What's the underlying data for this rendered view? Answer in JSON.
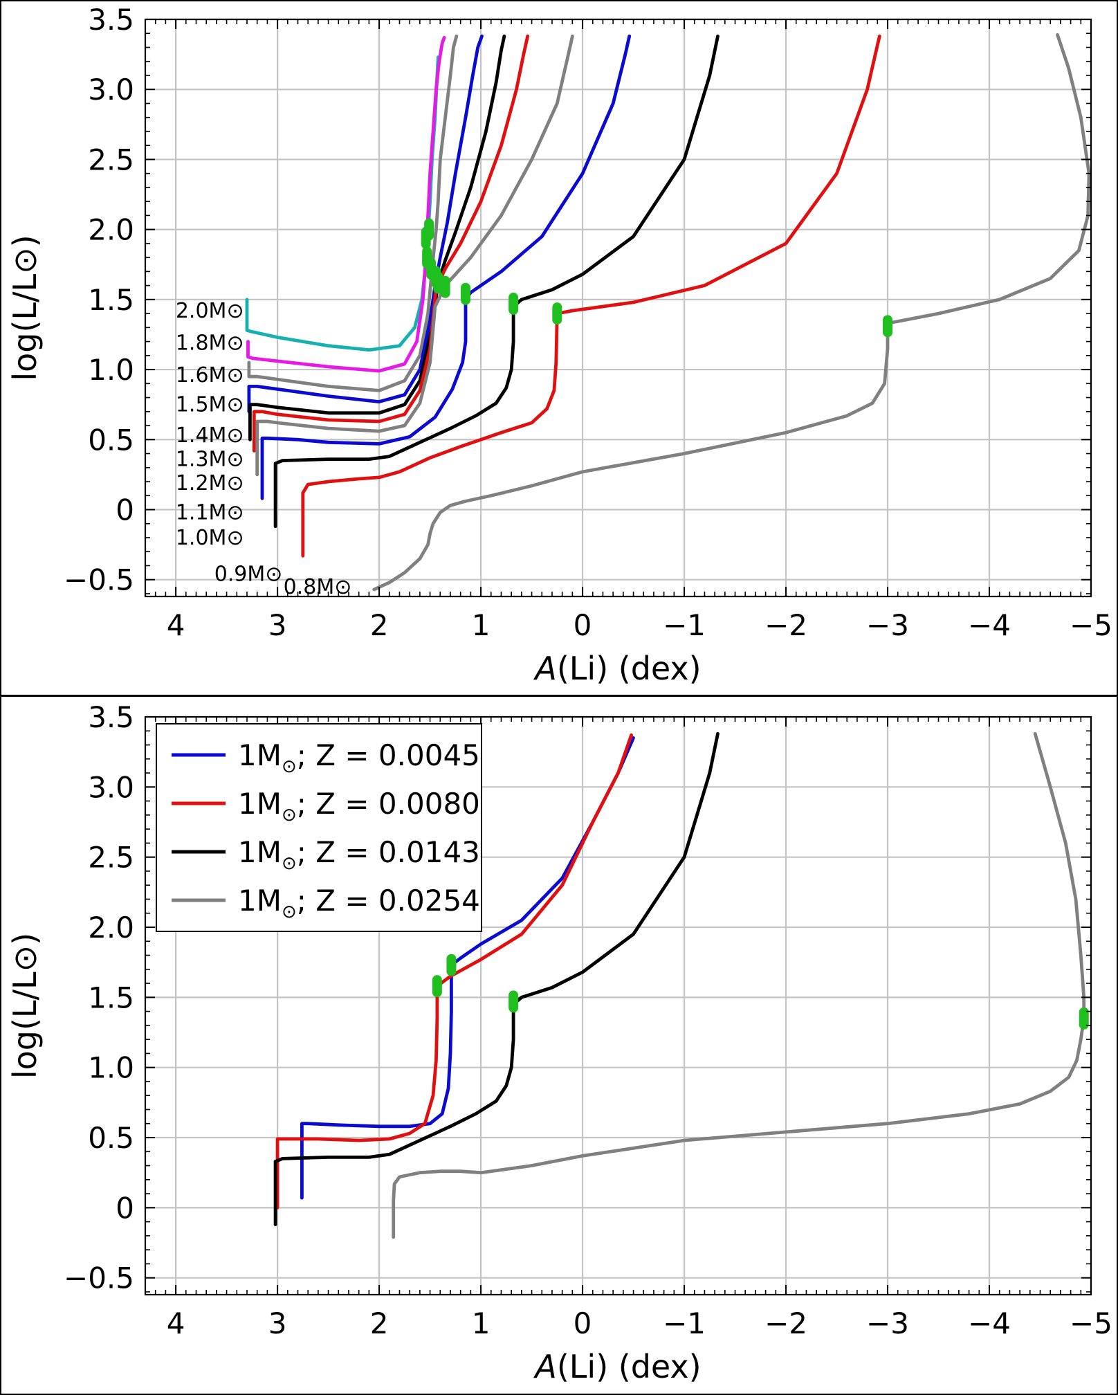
{
  "chart_data": [
    {
      "type": "line",
      "panel": "top",
      "xlabel_italic": "A",
      "xlabel_rest": "(Li) (dex)",
      "ylabel": "log(L/L⊙)",
      "xlim": [
        4.3,
        -5.0
      ],
      "ylim": [
        -0.62,
        3.5
      ],
      "xticks": [
        4,
        3,
        2,
        1,
        0,
        -1,
        -2,
        -3,
        -4,
        -5
      ],
      "xtick_labels": [
        "4",
        "3",
        "2",
        "1",
        "0",
        "−1",
        "−2",
        "−3",
        "−4",
        "−5"
      ],
      "yticks": [
        -0.5,
        0,
        0.5,
        1.0,
        1.5,
        2.0,
        2.5,
        3.0,
        3.5
      ],
      "ytick_labels": [
        "−0.5",
        "0",
        "0.5",
        "1.0",
        "1.5",
        "2.0",
        "2.5",
        "3.0",
        "3.5"
      ],
      "grid": true,
      "bump_color": "#1fbf1f",
      "series": [
        {
          "name": "2.0M⊙",
          "color": "#17b0b0",
          "label_pos": [
            3.33,
            1.42
          ],
          "bump": [
            1.51,
            2.0
          ],
          "x": [
            3.3,
            3.3,
            3.3,
            3.25,
            3.0,
            2.5,
            2.1,
            1.8,
            1.65,
            1.58,
            1.55,
            1.52,
            1.5,
            1.48,
            1.45,
            1.43,
            1.42
          ],
          "y": [
            1.5,
            1.35,
            1.28,
            1.27,
            1.23,
            1.17,
            1.14,
            1.17,
            1.3,
            1.5,
            1.7,
            1.95,
            2.2,
            2.5,
            2.8,
            3.1,
            3.23
          ]
        },
        {
          "name": "1.8M⊙",
          "color": "#e61ae6",
          "label_pos": [
            3.33,
            1.19
          ],
          "bump": [
            1.54,
            1.94
          ],
          "x": [
            3.29,
            3.29,
            3.29,
            3.24,
            3.0,
            2.5,
            2.0,
            1.75,
            1.63,
            1.57,
            1.54,
            1.52,
            1.5,
            1.47,
            1.44,
            1.41,
            1.38,
            1.36
          ],
          "y": [
            1.2,
            1.12,
            1.09,
            1.08,
            1.06,
            1.02,
            0.99,
            1.04,
            1.2,
            1.5,
            1.8,
            2.1,
            2.4,
            2.7,
            3.0,
            3.2,
            3.33,
            3.37
          ]
        },
        {
          "name": "1.6M⊙",
          "color": "#808080",
          "label_pos": [
            3.33,
            0.96
          ],
          "bump": [
            1.53,
            1.8
          ],
          "x": [
            3.28,
            3.28,
            3.28,
            3.2,
            3.0,
            2.5,
            2.0,
            1.75,
            1.6,
            1.52,
            1.48,
            1.44,
            1.42,
            1.4,
            1.35,
            1.3,
            1.27,
            1.24
          ],
          "y": [
            1.05,
            0.97,
            0.95,
            0.95,
            0.93,
            0.88,
            0.85,
            0.92,
            1.1,
            1.4,
            1.72,
            2.0,
            2.2,
            2.5,
            2.8,
            3.1,
            3.3,
            3.38
          ]
        },
        {
          "name": "1.5M⊙",
          "color": "#0a0ad0",
          "label_pos": [
            3.33,
            0.75
          ],
          "bump": [
            1.49,
            1.72
          ],
          "x": [
            3.28,
            3.28,
            3.28,
            3.2,
            3.0,
            2.5,
            2.0,
            1.75,
            1.6,
            1.5,
            1.45,
            1.4,
            1.33,
            1.25,
            1.15,
            1.08,
            1.03,
            0.99
          ],
          "y": [
            0.7,
            0.83,
            0.88,
            0.88,
            0.86,
            0.81,
            0.77,
            0.82,
            1.0,
            1.35,
            1.6,
            1.8,
            2.05,
            2.4,
            2.8,
            3.1,
            3.3,
            3.38
          ]
        },
        {
          "name": "1.4M⊙",
          "color": "#000000",
          "label_pos": [
            3.33,
            0.53
          ],
          "bump": [
            1.44,
            1.66
          ],
          "x": [
            3.27,
            3.27,
            3.27,
            3.2,
            3.0,
            2.5,
            2.0,
            1.75,
            1.6,
            1.48,
            1.42,
            1.35,
            1.25,
            1.1,
            0.95,
            0.85,
            0.8,
            0.77
          ],
          "y": [
            0.5,
            0.7,
            0.75,
            0.75,
            0.73,
            0.69,
            0.69,
            0.75,
            0.92,
            1.3,
            1.62,
            1.78,
            1.98,
            2.3,
            2.7,
            3.05,
            3.28,
            3.38
          ]
        },
        {
          "name": "1.3M⊙",
          "color": "#e01010",
          "label_pos": [
            3.33,
            0.36
          ],
          "bump": [
            1.42,
            1.62
          ],
          "x": [
            3.23,
            3.23,
            3.23,
            3.15,
            3.0,
            2.5,
            2.0,
            1.75,
            1.6,
            1.5,
            1.44,
            1.35,
            1.2,
            1.0,
            0.8,
            0.65,
            0.58,
            0.54
          ],
          "y": [
            0.42,
            0.62,
            0.7,
            0.7,
            0.68,
            0.64,
            0.63,
            0.68,
            0.85,
            1.15,
            1.58,
            1.72,
            1.9,
            2.2,
            2.6,
            3.0,
            3.25,
            3.38
          ]
        },
        {
          "name": "1.2M⊙",
          "color": "#808080",
          "label_pos": [
            3.33,
            0.19
          ],
          "bump": [
            1.35,
            1.59
          ],
          "x": [
            3.2,
            3.2,
            3.2,
            3.1,
            3.0,
            2.5,
            2.0,
            1.75,
            1.6,
            1.5,
            1.45,
            1.35,
            1.1,
            0.8,
            0.5,
            0.25,
            0.14,
            0.1
          ],
          "y": [
            0.25,
            0.55,
            0.63,
            0.63,
            0.62,
            0.58,
            0.56,
            0.6,
            0.76,
            1.05,
            1.45,
            1.6,
            1.8,
            2.1,
            2.5,
            2.9,
            3.25,
            3.38
          ]
        },
        {
          "name": "1.1M⊙",
          "color": "#0a0ad0",
          "label_pos": [
            3.33,
            -0.02
          ],
          "bump": [
            1.15,
            1.54
          ],
          "x": [
            3.15,
            3.15,
            3.15,
            3.1,
            2.8,
            2.5,
            2.0,
            1.7,
            1.45,
            1.28,
            1.18,
            1.15,
            1.15,
            1.1,
            0.8,
            0.4,
            0.0,
            -0.3,
            -0.42,
            -0.46
          ],
          "y": [
            0.08,
            0.45,
            0.51,
            0.51,
            0.5,
            0.48,
            0.47,
            0.52,
            0.66,
            0.86,
            1.05,
            1.2,
            1.5,
            1.55,
            1.7,
            1.95,
            2.4,
            2.9,
            3.25,
            3.38
          ]
        },
        {
          "name": "1.0M⊙",
          "color": "#000000",
          "label_pos": [
            3.33,
            -0.2
          ],
          "bump": [
            0.68,
            1.47
          ],
          "x": [
            3.02,
            3.02,
            3.02,
            2.95,
            2.5,
            2.1,
            1.9,
            1.6,
            1.3,
            1.05,
            0.85,
            0.75,
            0.7,
            0.68,
            0.68,
            0.6,
            0.3,
            0.0,
            -0.5,
            -1.0,
            -1.25,
            -1.33
          ],
          "y": [
            -0.12,
            0.15,
            0.33,
            0.35,
            0.36,
            0.36,
            0.38,
            0.48,
            0.58,
            0.67,
            0.76,
            0.87,
            1.0,
            1.2,
            1.45,
            1.5,
            1.57,
            1.68,
            1.95,
            2.5,
            3.1,
            3.38
          ]
        },
        {
          "name": "0.9M⊙",
          "color": "#e01010",
          "label_pos": [
            2.95,
            -0.46
          ],
          "bump": [
            0.25,
            1.4
          ],
          "x": [
            2.75,
            2.75,
            2.75,
            2.7,
            2.5,
            2.2,
            2.0,
            1.8,
            1.5,
            1.2,
            0.8,
            0.5,
            0.35,
            0.28,
            0.26,
            0.25,
            0.1,
            -0.5,
            -1.2,
            -2.0,
            -2.5,
            -2.8,
            -2.92
          ],
          "y": [
            -0.33,
            0.0,
            0.12,
            0.18,
            0.2,
            0.22,
            0.23,
            0.27,
            0.37,
            0.45,
            0.55,
            0.62,
            0.72,
            0.85,
            1.05,
            1.4,
            1.42,
            1.48,
            1.6,
            1.9,
            2.4,
            3.0,
            3.38
          ]
        },
        {
          "name": "0.8M⊙",
          "color": "#808080",
          "label_pos": [
            2.27,
            -0.55
          ],
          "bump": [
            -3.0,
            1.31
          ],
          "x": [
            2.05,
            1.9,
            1.75,
            1.6,
            1.52,
            1.5,
            1.47,
            1.4,
            1.3,
            1.15,
            0.9,
            0.5,
            0.0,
            -1.0,
            -2.0,
            -2.6,
            -2.85,
            -2.97,
            -3.0,
            -3.0,
            -3.5,
            -4.1,
            -4.6,
            -4.88,
            -4.97,
            -4.98,
            -4.9,
            -4.78,
            -4.67
          ],
          "y": [
            -0.57,
            -0.52,
            -0.45,
            -0.35,
            -0.25,
            -0.17,
            -0.1,
            -0.02,
            0.03,
            0.06,
            0.1,
            0.17,
            0.27,
            0.4,
            0.55,
            0.67,
            0.76,
            0.9,
            1.15,
            1.33,
            1.4,
            1.5,
            1.65,
            1.85,
            2.1,
            2.4,
            2.8,
            3.15,
            3.39
          ]
        }
      ]
    },
    {
      "type": "line",
      "panel": "bottom",
      "xlabel_italic": "A",
      "xlabel_rest": "(Li) (dex)",
      "ylabel": "log(L/L⊙)",
      "xlim": [
        4.3,
        -5.0
      ],
      "ylim": [
        -0.62,
        3.5
      ],
      "xticks": [
        4,
        3,
        2,
        1,
        0,
        -1,
        -2,
        -3,
        -4,
        -5
      ],
      "xtick_labels": [
        "4",
        "3",
        "2",
        "1",
        "0",
        "−1",
        "−2",
        "−3",
        "−4",
        "−5"
      ],
      "yticks": [
        -0.5,
        0,
        0.5,
        1.0,
        1.5,
        2.0,
        2.5,
        3.0,
        3.5
      ],
      "ytick_labels": [
        "−0.5",
        "0",
        "0.5",
        "1.0",
        "1.5",
        "2.0",
        "2.5",
        "3.0",
        "3.5"
      ],
      "grid": true,
      "legend_position": "top-left",
      "bump_color": "#1fbf1f",
      "series": [
        {
          "name": "1M⊙; Z = 0.0045",
          "legend_mass": "1M",
          "legend_rest": "; Z = 0.0045",
          "color": "#0a0ad0",
          "bump": [
            1.29,
            1.73
          ],
          "x": [
            2.76,
            2.76,
            2.76,
            2.7,
            2.4,
            2.0,
            1.7,
            1.5,
            1.38,
            1.32,
            1.3,
            1.29,
            1.29,
            1.2,
            1.0,
            0.6,
            0.2,
            -0.1,
            -0.35,
            -0.5
          ],
          "y": [
            0.07,
            0.45,
            0.6,
            0.6,
            0.59,
            0.58,
            0.58,
            0.6,
            0.67,
            0.85,
            1.1,
            1.4,
            1.73,
            1.78,
            1.88,
            2.05,
            2.35,
            2.75,
            3.1,
            3.35
          ]
        },
        {
          "name": "1M⊙; Z = 0.0080",
          "legend_mass": "1M",
          "legend_rest": "; Z = 0.0080",
          "color": "#e01010",
          "bump": [
            1.43,
            1.58
          ],
          "x": [
            3.0,
            3.0,
            3.0,
            2.9,
            2.6,
            2.2,
            1.9,
            1.7,
            1.55,
            1.47,
            1.44,
            1.43,
            1.43,
            1.3,
            1.0,
            0.6,
            0.2,
            -0.1,
            -0.35,
            -0.48
          ],
          "y": [
            0.0,
            0.3,
            0.49,
            0.49,
            0.49,
            0.48,
            0.49,
            0.53,
            0.6,
            0.8,
            1.05,
            1.35,
            1.58,
            1.65,
            1.77,
            1.95,
            2.3,
            2.75,
            3.1,
            3.37
          ]
        },
        {
          "name": "1M⊙; Z = 0.0143",
          "legend_mass": "1M",
          "legend_rest": "; Z = 0.0143",
          "color": "#000000",
          "bump": [
            0.68,
            1.47
          ],
          "x": [
            3.02,
            3.02,
            3.02,
            2.95,
            2.5,
            2.1,
            1.9,
            1.6,
            1.3,
            1.05,
            0.85,
            0.75,
            0.7,
            0.68,
            0.68,
            0.6,
            0.3,
            0.0,
            -0.5,
            -1.0,
            -1.25,
            -1.33
          ],
          "y": [
            -0.12,
            0.15,
            0.33,
            0.35,
            0.36,
            0.36,
            0.38,
            0.48,
            0.58,
            0.67,
            0.76,
            0.87,
            1.0,
            1.2,
            1.45,
            1.5,
            1.57,
            1.68,
            1.95,
            2.5,
            3.1,
            3.38
          ]
        },
        {
          "name": "1M⊙; Z = 0.0254",
          "legend_mass": "1M",
          "legend_rest": "; Z = 0.0254",
          "color": "#808080",
          "bump": [
            -4.93,
            1.35
          ],
          "x": [
            1.86,
            1.86,
            1.85,
            1.8,
            1.6,
            1.4,
            1.2,
            1.0,
            0.5,
            0.0,
            -1.0,
            -2.0,
            -3.0,
            -3.8,
            -4.3,
            -4.6,
            -4.78,
            -4.86,
            -4.9,
            -4.93,
            -4.93,
            -4.9,
            -4.85,
            -4.75,
            -4.6,
            -4.45
          ],
          "y": [
            -0.21,
            0.05,
            0.17,
            0.22,
            0.25,
            0.26,
            0.26,
            0.25,
            0.3,
            0.37,
            0.48,
            0.54,
            0.6,
            0.67,
            0.74,
            0.83,
            0.93,
            1.05,
            1.2,
            1.35,
            1.5,
            1.8,
            2.2,
            2.6,
            3.0,
            3.38
          ]
        }
      ]
    }
  ]
}
